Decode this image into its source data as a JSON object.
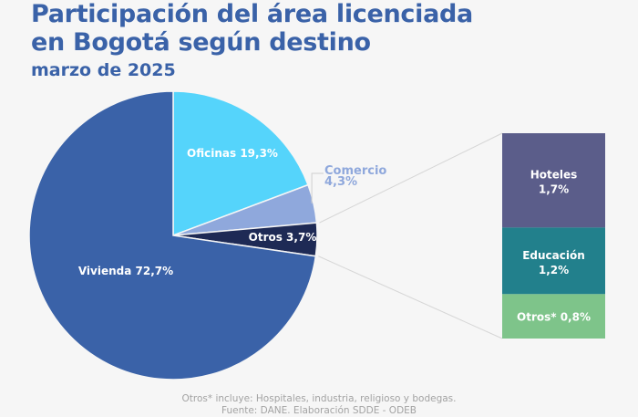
{
  "header": {
    "title_line1": "Participación del área licenciada",
    "title_line2": "en Bogotá según destino",
    "subtitle": "marzo de 2025"
  },
  "chart_data": [
    {
      "type": "pie",
      "title": "Participación del área licenciada en Bogotá según destino",
      "subtitle": "marzo de 2025",
      "unit": "%",
      "start": "12 o'clock, clockwise",
      "slices": [
        {
          "name": "Oficinas",
          "value": 19.3,
          "label": "Oficinas 19,3%",
          "color": "#55d4fb",
          "label_color": "#ffffff"
        },
        {
          "name": "Comercio",
          "value": 4.3,
          "label_line1": "Comercio",
          "label_line2": "4,3%",
          "color": "#8fa8dc",
          "label_color": "#8fa8dc"
        },
        {
          "name": "Otros",
          "value": 3.7,
          "label": "Otros 3,7%",
          "color": "#1e2a55",
          "label_color": "#ffffff"
        },
        {
          "name": "Vivienda",
          "value": 72.7,
          "label": "Vivienda 72,7%",
          "color": "#3a62a8",
          "label_color": "#ffffff"
        }
      ]
    },
    {
      "type": "bar",
      "stacked": true,
      "description_of": "Otros 3,7%",
      "segments": [
        {
          "name": "Hoteles",
          "value": 1.7,
          "label_line1": "Hoteles",
          "label_line2": "1,7%",
          "color": "#5b5d8a"
        },
        {
          "name": "Educación",
          "value": 1.2,
          "label_line1": "Educación",
          "label_line2": "1,2%",
          "color": "#22808c"
        },
        {
          "name": "Otros*",
          "value": 0.8,
          "label_line1": "Otros* 0,8%",
          "label_line2": "",
          "color": "#7ec48a"
        }
      ]
    }
  ],
  "footer": {
    "note": "Otros* incluye: Hospitales, industria, religioso y bodegas.",
    "source": "Fuente: DANE. Elaboración SDDE - ODEB"
  }
}
